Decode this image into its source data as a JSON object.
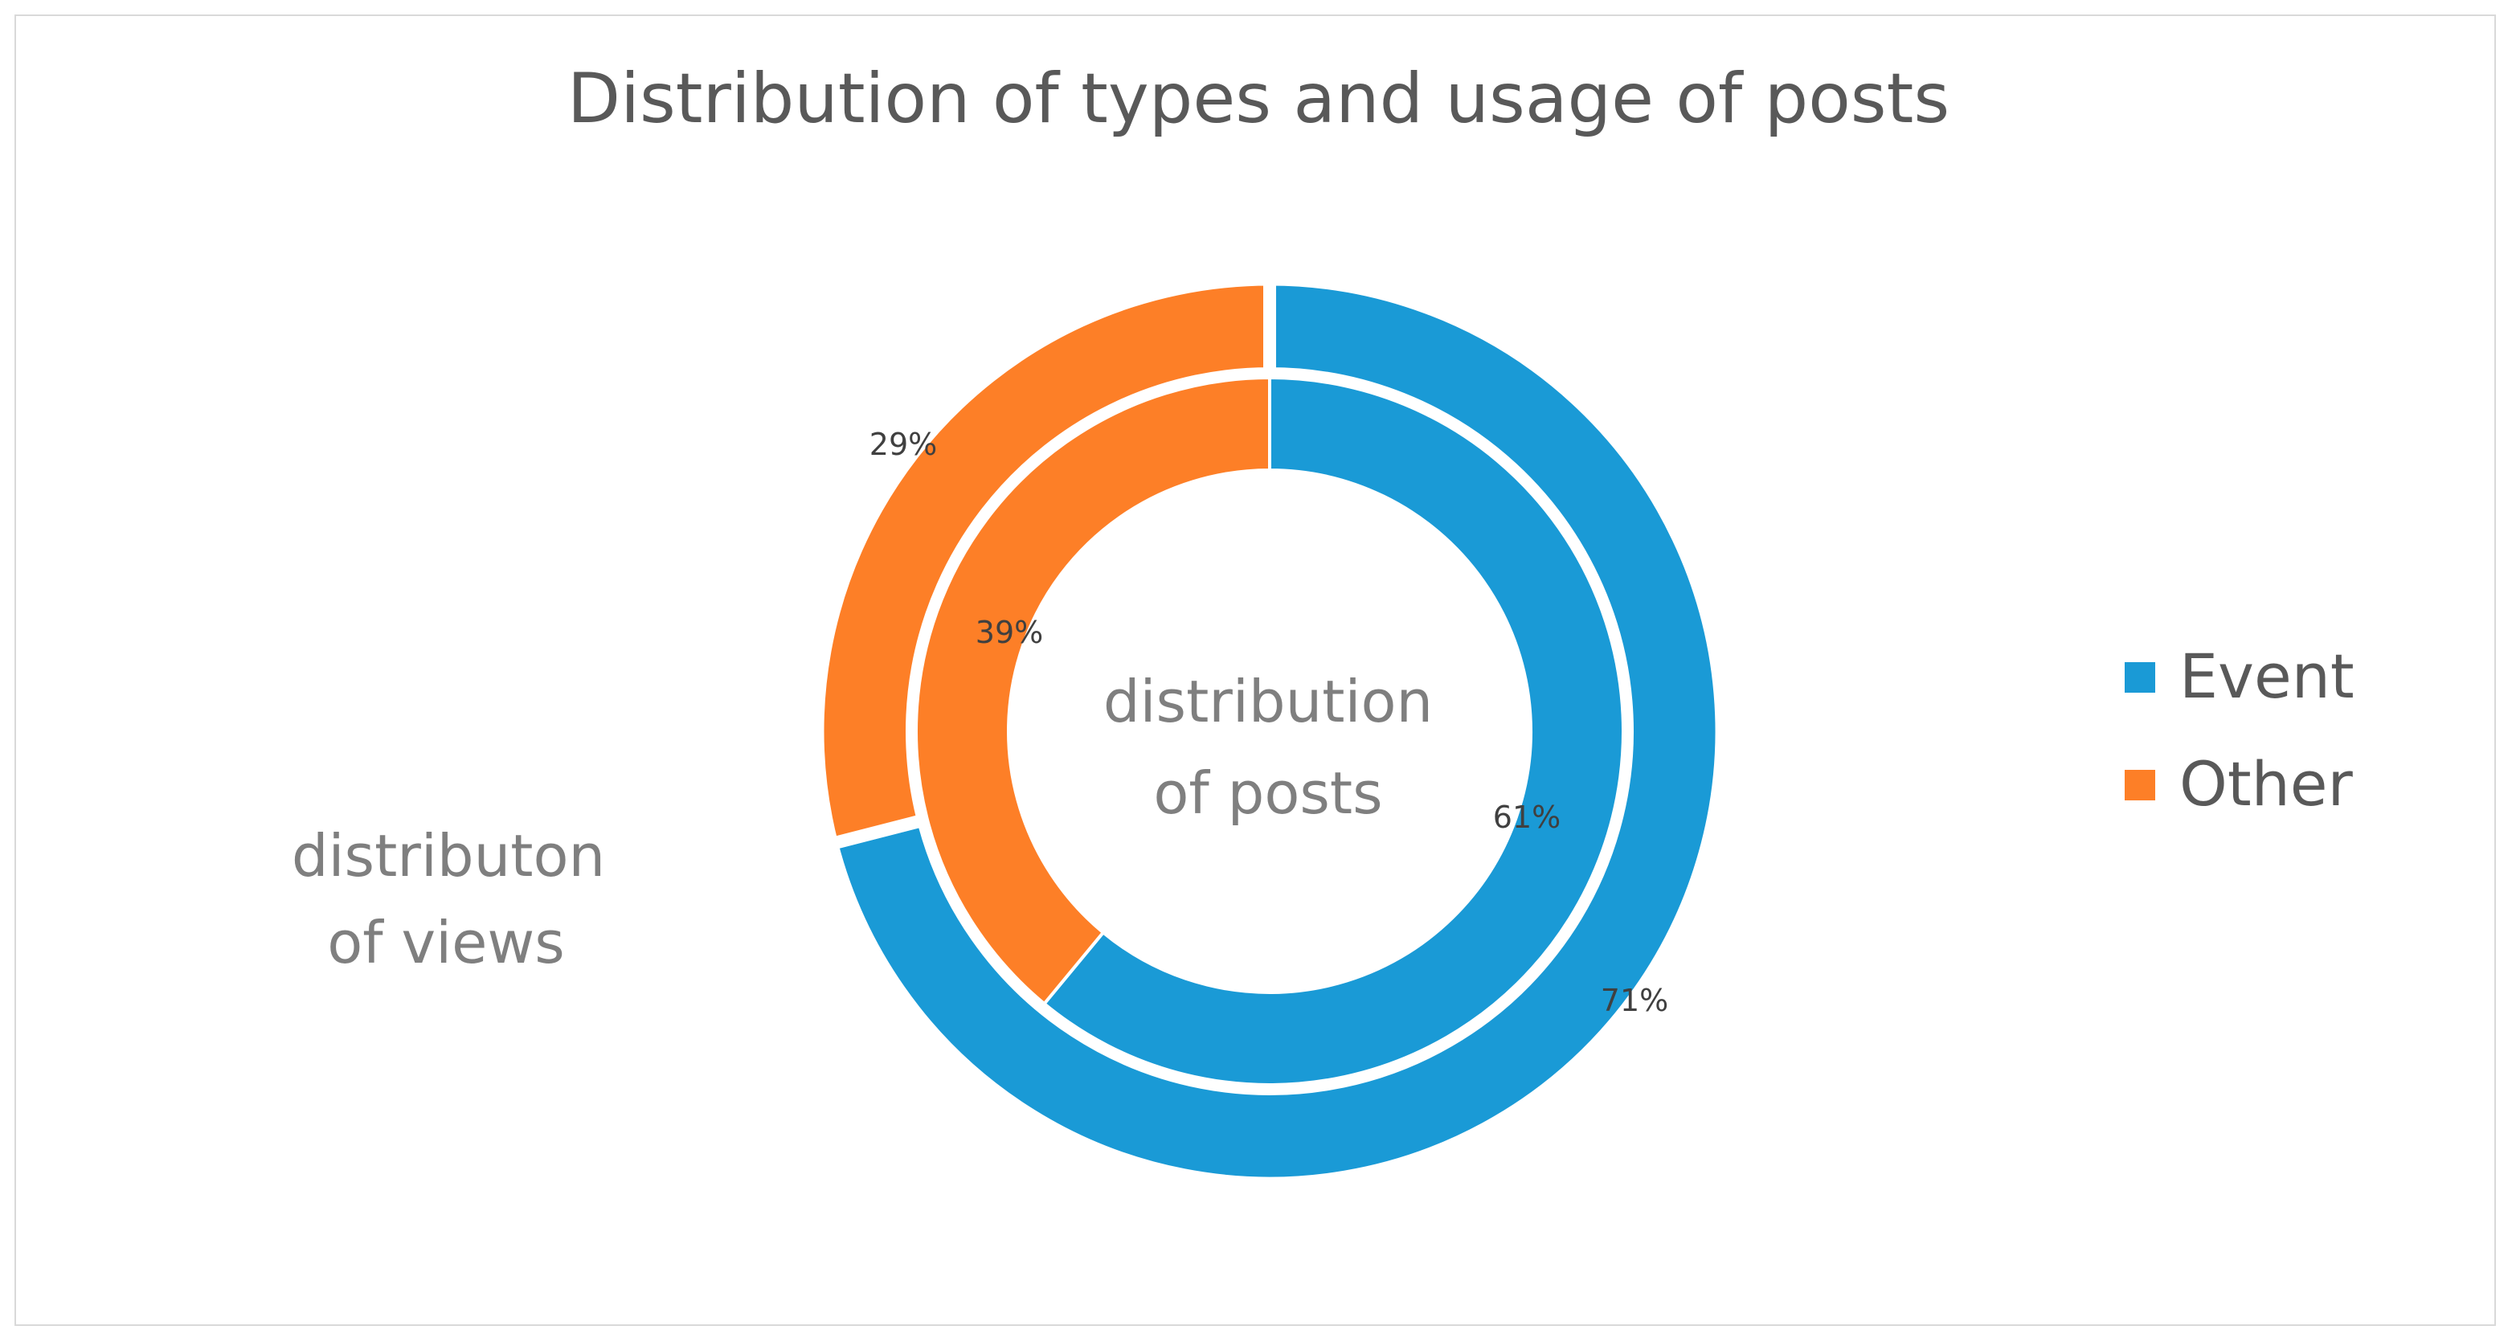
{
  "chart_data": {
    "type": "pie",
    "subtype": "doughnut",
    "title": "Distribution of types and usage of posts",
    "categories": [
      "Event",
      "Other"
    ],
    "series": [
      {
        "name": "distribution of posts",
        "ring": "inner",
        "values": [
          61,
          39
        ],
        "labels": [
          "61%",
          "39%"
        ]
      },
      {
        "name": "distributon of views",
        "ring": "outer",
        "values": [
          71,
          29
        ],
        "labels": [
          "71%",
          "29%"
        ]
      }
    ],
    "colors": {
      "Event": "#1a9ad6",
      "Other": "#fd7f27"
    },
    "legend": {
      "position": "right",
      "items": [
        "Event",
        "Other"
      ]
    },
    "annotations": {
      "center_line1": "distribution",
      "center_line2": "of posts",
      "side_line1": "distributon",
      "side_line2": "of views"
    }
  }
}
